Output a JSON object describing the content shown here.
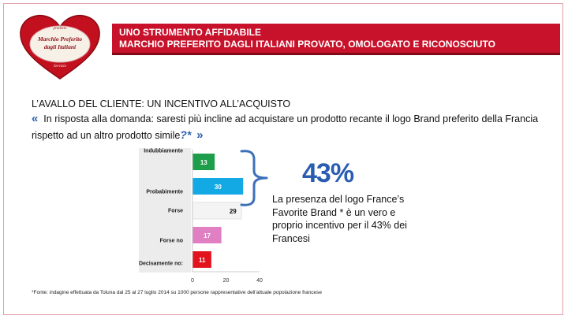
{
  "logo": {
    "top": "prodotto",
    "line1": "Marchio Preferito",
    "line2": "dagli Italiani",
    "bottom": "Servizio"
  },
  "banner": {
    "line1": "UNO STRUMENTO AFFIDABILE",
    "line2": "MARCHIO PREFERITO DAGLI ITALIANI PROVATO, OMOLOGATO E RICONOSCIUTO"
  },
  "subtitle": "L’AVALLO DEL CLIENTE: UN INCENTIVO ALL’ACQUISTO",
  "question": {
    "open_quote": "«",
    "text": "In risposta alla domanda: saresti più incline ad acquistare un prodotto recante il logo Brand preferito della Francia rispetto ad un altro prodotto simile",
    "mark": "?*",
    "close_quote": "»"
  },
  "highlight": {
    "percent": "43%",
    "description": "La presenza del logo France’s Favorite Brand * è un vero e proprio incentivo per il 43% dei Francesi"
  },
  "footnote": "*Fonte: indagine effettuata da Toluna dal 25 al 27 luglio 2014 su 1000 persone rappresentative dell’attuale popolazione francese",
  "chart_data": {
    "type": "bar",
    "orientation": "horizontal",
    "categories": [
      "Indubbiamente",
      "Probabimente",
      "Forse",
      "Forse no",
      "Decisamente no:"
    ],
    "values": [
      13,
      30,
      29,
      17,
      11
    ],
    "colors": [
      "#1e9e4b",
      "#12a9e5",
      "#f4f4f4",
      "#e07fc1",
      "#e3131e"
    ],
    "label_colors": [
      "#ffffff",
      "#ffffff",
      "#111111",
      "#ffffff",
      "#ffffff"
    ],
    "xlim": [
      0,
      40
    ],
    "xticks": [
      0,
      20,
      40
    ],
    "grid": false,
    "legend": "none"
  }
}
